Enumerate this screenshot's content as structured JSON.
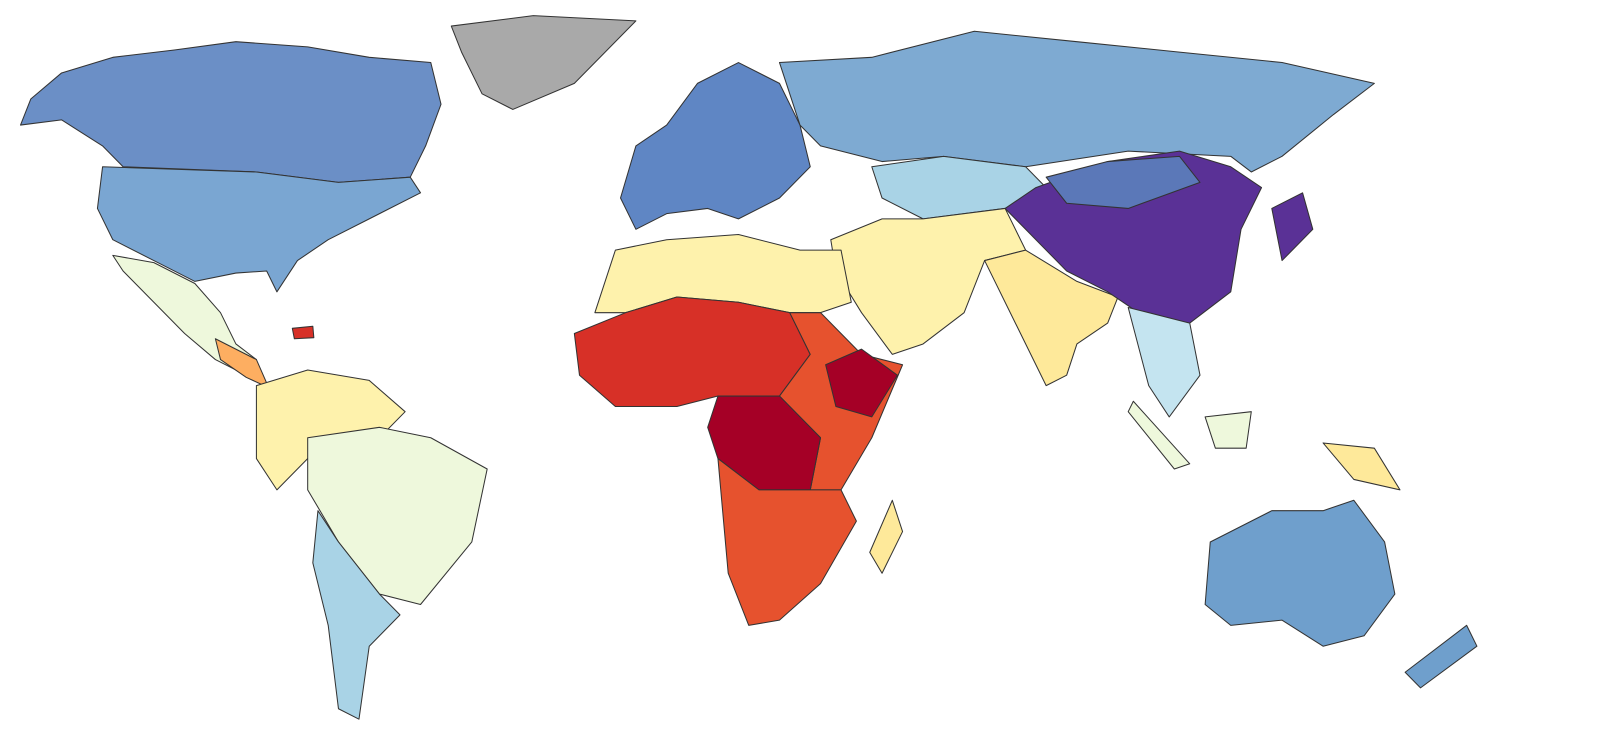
{
  "map": {
    "ocean": "#ffffff",
    "border": "#333333",
    "classes": [
      "#6b8fc6",
      "#7aa6d2",
      "#a9a9a9",
      "#7eaad2",
      "#5f86c4",
      "#eef8dc",
      "#fef2ac",
      "#a9d3e6",
      "#fdae61",
      "#d73027",
      "#a50026",
      "#e6522e",
      "#5a3196",
      "#5b78b8",
      "#c4e4f0",
      "#6f9fcc",
      "#fee99a"
    ]
  }
}
